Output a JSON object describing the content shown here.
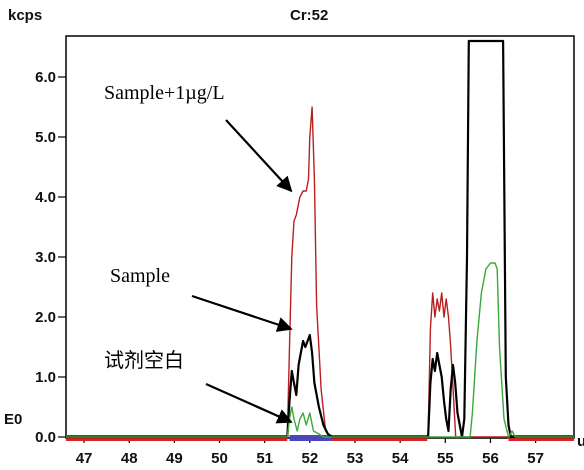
{
  "header": {
    "y_unit": "kcps",
    "isotope": "Cr:52",
    "baseline_marker": "E0",
    "x_unit_partial": "u"
  },
  "chart_data": {
    "type": "line",
    "title": "Cr:52",
    "ylabel": "kcps",
    "xlim": [
      46.6,
      57.85
    ],
    "ylim": [
      0,
      6.6
    ],
    "xticks": [
      47,
      48,
      49,
      50,
      51,
      52,
      53,
      54,
      55,
      56,
      57
    ],
    "yticks": [
      0.0,
      1.0,
      2.0,
      3.0,
      4.0,
      5.0,
      6.0
    ],
    "ytick_labels": [
      "0.0",
      "1.0",
      "2.0",
      "3.0",
      "4.0",
      "5.0",
      "6.0"
    ],
    "series": [
      {
        "name": "Sample+1µg/L",
        "color": "#b81f1f",
        "points": [
          [
            46.6,
            0
          ],
          [
            51.5,
            0
          ],
          [
            51.55,
            1.5
          ],
          [
            51.6,
            3.0
          ],
          [
            51.65,
            3.6
          ],
          [
            51.7,
            3.7
          ],
          [
            51.78,
            4.0
          ],
          [
            51.85,
            4.1
          ],
          [
            51.92,
            4.1
          ],
          [
            51.97,
            4.3
          ],
          [
            52.0,
            5.0
          ],
          [
            52.05,
            5.5
          ],
          [
            52.1,
            4.3
          ],
          [
            52.15,
            2.2
          ],
          [
            52.25,
            0.8
          ],
          [
            52.35,
            0.1
          ],
          [
            52.45,
            0
          ],
          [
            54.62,
            0
          ],
          [
            54.67,
            1.8
          ],
          [
            54.72,
            2.4
          ],
          [
            54.77,
            2.0
          ],
          [
            54.82,
            2.3
          ],
          [
            54.87,
            2.1
          ],
          [
            54.92,
            2.4
          ],
          [
            54.97,
            2.0
          ],
          [
            55.02,
            2.3
          ],
          [
            55.07,
            2.0
          ],
          [
            55.12,
            1.5
          ],
          [
            55.18,
            0.7
          ],
          [
            55.23,
            0
          ],
          [
            57.85,
            0
          ]
        ]
      },
      {
        "name": "Sample",
        "color": "#000000",
        "points": [
          [
            46.6,
            0
          ],
          [
            51.5,
            0
          ],
          [
            51.55,
            0.6
          ],
          [
            51.6,
            1.1
          ],
          [
            51.65,
            0.9
          ],
          [
            51.7,
            0.7
          ],
          [
            51.75,
            1.2
          ],
          [
            51.8,
            1.4
          ],
          [
            51.85,
            1.6
          ],
          [
            51.9,
            1.5
          ],
          [
            51.95,
            1.6
          ],
          [
            52.0,
            1.7
          ],
          [
            52.05,
            1.4
          ],
          [
            52.1,
            0.9
          ],
          [
            52.2,
            0.5
          ],
          [
            52.3,
            0.2
          ],
          [
            52.4,
            0.05
          ],
          [
            52.5,
            0
          ],
          [
            54.62,
            0
          ],
          [
            54.67,
            0.9
          ],
          [
            54.72,
            1.3
          ],
          [
            54.77,
            1.1
          ],
          [
            54.82,
            1.4
          ],
          [
            54.87,
            1.2
          ],
          [
            54.92,
            1.0
          ],
          [
            54.97,
            0.6
          ],
          [
            55.02,
            0.3
          ],
          [
            55.07,
            0.1
          ],
          [
            55.12,
            0.8
          ],
          [
            55.17,
            1.2
          ],
          [
            55.22,
            0.9
          ],
          [
            55.27,
            0.4
          ],
          [
            55.37,
            0
          ],
          [
            55.42,
            0.3
          ],
          [
            55.48,
            3.0
          ],
          [
            55.52,
            6.6
          ],
          [
            56.28,
            6.6
          ],
          [
            56.34,
            1.0
          ],
          [
            56.4,
            0.2
          ],
          [
            56.45,
            0
          ],
          [
            57.85,
            0
          ]
        ]
      },
      {
        "name": "试剂空白",
        "color": "#3aa83a",
        "points": [
          [
            46.6,
            0
          ],
          [
            51.5,
            0
          ],
          [
            51.55,
            0.3
          ],
          [
            51.6,
            0.5
          ],
          [
            51.65,
            0.3
          ],
          [
            51.72,
            0.1
          ],
          [
            51.78,
            0.3
          ],
          [
            51.85,
            0.4
          ],
          [
            51.92,
            0.2
          ],
          [
            52.0,
            0.4
          ],
          [
            52.08,
            0.1
          ],
          [
            52.2,
            0.05
          ],
          [
            52.3,
            0
          ],
          [
            55.55,
            0
          ],
          [
            55.6,
            0.4
          ],
          [
            55.7,
            1.6
          ],
          [
            55.8,
            2.4
          ],
          [
            55.9,
            2.8
          ],
          [
            56.0,
            2.9
          ],
          [
            56.1,
            2.9
          ],
          [
            56.15,
            2.8
          ],
          [
            56.2,
            1.5
          ],
          [
            56.3,
            0.3
          ],
          [
            56.4,
            0
          ],
          [
            56.48,
            0.1
          ],
          [
            56.55,
            0
          ],
          [
            57.85,
            0
          ]
        ]
      }
    ],
    "baseline_segments": [
      {
        "color": "#dd2222",
        "x": [
          46.6,
          51.5
        ]
      },
      {
        "color": "#4a46b8",
        "x": [
          51.55,
          52.5
        ]
      },
      {
        "color": "#dd2222",
        "x": [
          52.5,
          54.6
        ]
      },
      {
        "color": "#dd2222",
        "x": [
          56.4,
          57.85
        ]
      }
    ],
    "annotations": [
      {
        "text": "Sample+1µg/L",
        "points_to": [
          51.7,
          4.1
        ]
      },
      {
        "text": "Sample",
        "points_to": [
          51.7,
          1.8
        ]
      },
      {
        "text": "试剂空白",
        "points_to": [
          51.7,
          0.25
        ]
      }
    ]
  }
}
